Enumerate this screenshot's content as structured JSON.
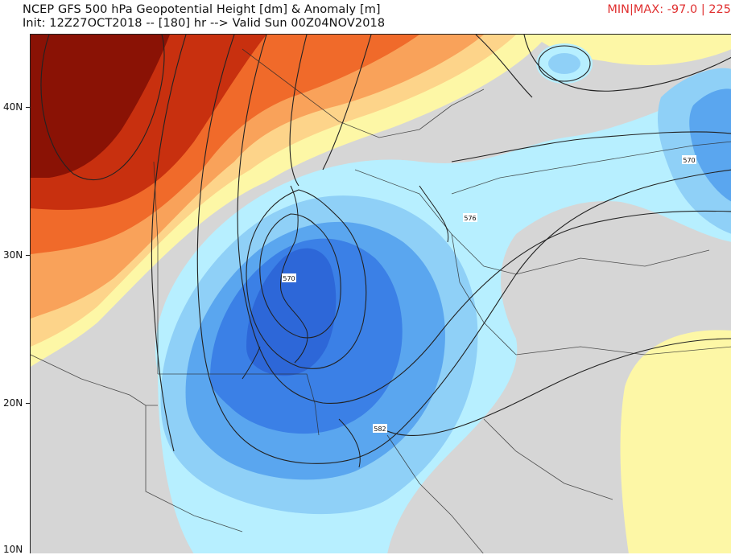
{
  "header": {
    "title": "NCEP GFS 500 hPa Geopotential Height [dm] & Anomaly [m]",
    "subtitle": "Init: 12Z27OCT2018 -- [180] hr --> Valid Sun 00Z04NOV2018",
    "minmax": "MIN|MAX: -97.0 | 225"
  },
  "axis": {
    "lat_labels": [
      "40N",
      "30N",
      "20N",
      "10N"
    ]
  },
  "contour_labels": [
    "570",
    "576",
    "570",
    "582"
  ],
  "colors": {
    "deep_red": "#8a1205",
    "red": "#c8300f",
    "orange": "#f06a2a",
    "light_orange": "#f9a25a",
    "yellow_orange": "#fdd48a",
    "pale_yellow": "#fdf7a6",
    "neutral_gray": "#d6d6d6",
    "cyan": "#b7efff",
    "light_blue": "#8fd0f7",
    "mid_blue": "#5aa6ef",
    "blue": "#3b80e6",
    "deep_blue": "#2d67d8"
  }
}
